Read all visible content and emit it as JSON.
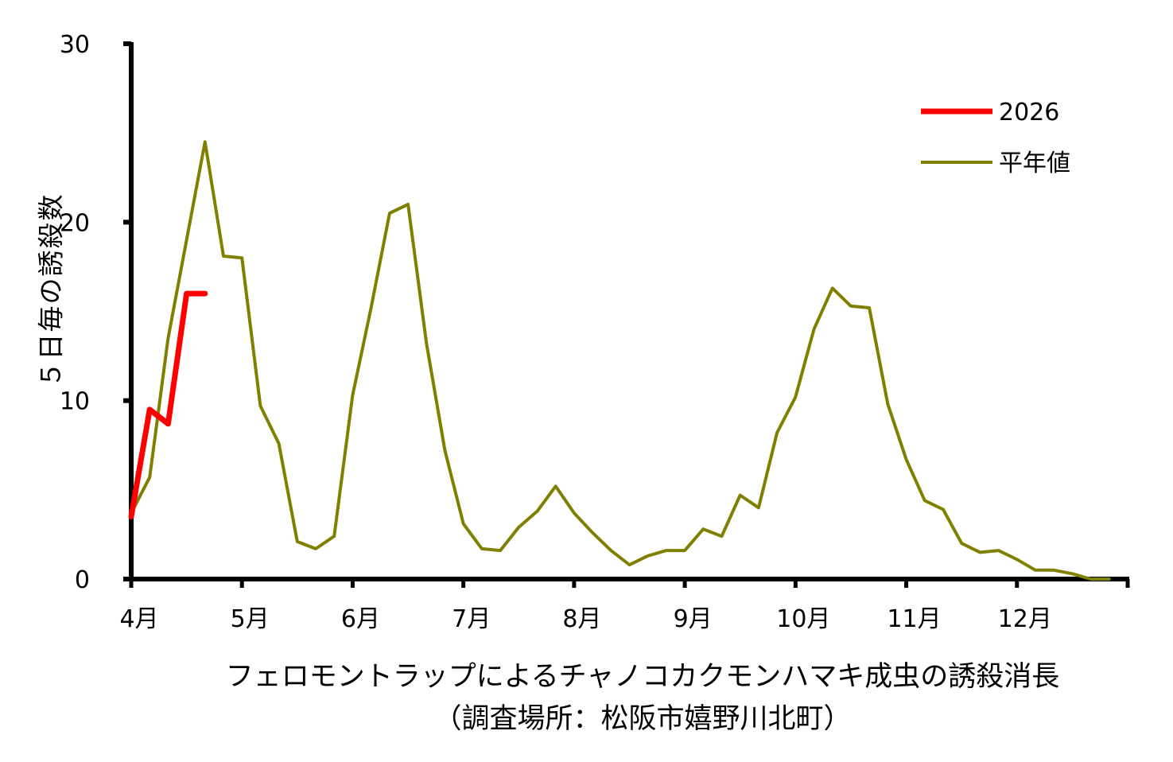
{
  "chart_data": {
    "type": "line",
    "ylabel": "５日毎の誘殺数",
    "xlabel_lines": [
      "フェロモントラップによるチャノコカクモンハマキ成虫の誘殺消長",
      "（調査場所：松阪市嬉野川北町）"
    ],
    "ylim": [
      0,
      30
    ],
    "yticks": [
      "0",
      "10",
      "20",
      "30"
    ],
    "xlim": [
      0,
      54
    ],
    "month_ticks": [
      0,
      6,
      12,
      18,
      24,
      30,
      36,
      42,
      48,
      54
    ],
    "month_labels": [
      "4月",
      "5月",
      "6月",
      "7月",
      "8月",
      "9月",
      "10月",
      "11月",
      "12月"
    ],
    "legend_position": "top-right",
    "series": [
      {
        "name": "2026",
        "color": "#ff0000",
        "x": [
          0,
          1,
          2,
          3,
          4
        ],
        "values": [
          3.5,
          9.5,
          8.7,
          16,
          16
        ]
      },
      {
        "name": "平年値",
        "color": "#808000",
        "x": [
          0,
          1,
          2,
          3,
          4,
          5,
          6,
          7,
          8,
          9,
          10,
          11,
          12,
          13,
          14,
          15,
          16,
          17,
          18,
          19,
          20,
          21,
          22,
          23,
          24,
          25,
          26,
          27,
          28,
          29,
          30,
          31,
          32,
          33,
          34,
          35,
          36,
          37,
          38,
          39,
          40,
          41,
          42,
          43,
          44,
          45,
          46,
          47,
          48,
          49,
          50,
          51,
          52,
          53
        ],
        "values": [
          3.7,
          5.7,
          13.5,
          19,
          24.5,
          18.1,
          18,
          9.7,
          7.6,
          2.1,
          1.7,
          2.4,
          10.3,
          15.2,
          20.5,
          21,
          13.2,
          7.2,
          3.1,
          1.7,
          1.6,
          2.9,
          3.8,
          5.2,
          3.7,
          2.6,
          1.6,
          0.8,
          1.3,
          1.6,
          1.6,
          2.8,
          2.4,
          4.7,
          4,
          8.2,
          10.2,
          14,
          16.3,
          15.3,
          15.2,
          9.8,
          6.7,
          4.4,
          3.9,
          2,
          1.5,
          1.6,
          1.1,
          0.5,
          0.5,
          0.3,
          0,
          0
        ]
      }
    ]
  }
}
